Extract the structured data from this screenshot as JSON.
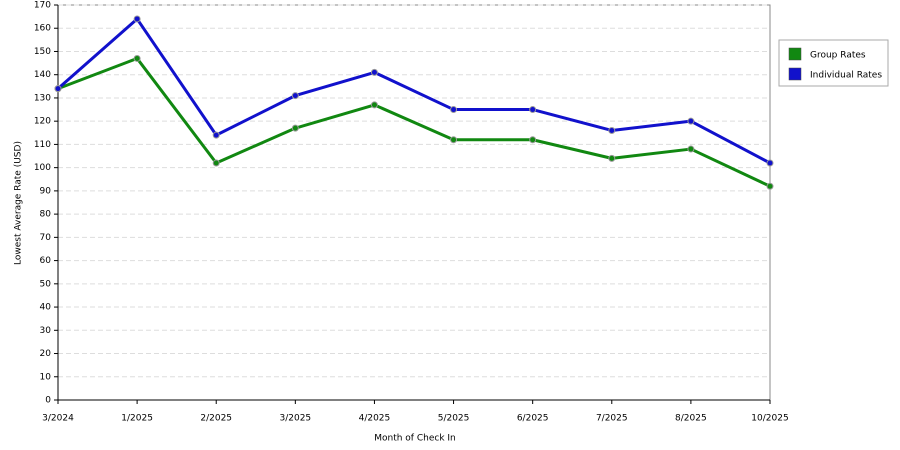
{
  "chart_data": {
    "type": "line",
    "x_label": "Month of Check In",
    "y_label": "Lowest Average Rate (USD)",
    "categories": [
      "3/2024",
      "1/2025",
      "2/2025",
      "3/2025",
      "4/2025",
      "5/2025",
      "6/2025",
      "7/2025",
      "8/2025",
      "10/2025"
    ],
    "series": [
      {
        "name": "Group Rates",
        "color": "#118811",
        "values": [
          134,
          147,
          102,
          117,
          127,
          112,
          112,
          104,
          108,
          92
        ]
      },
      {
        "name": "Individual Rates",
        "color": "#1111cc",
        "values": [
          134,
          164,
          114,
          131,
          141,
          125,
          125,
          116,
          120,
          102
        ]
      }
    ],
    "ylim": [
      0,
      170
    ],
    "yticks": [
      0,
      10,
      20,
      30,
      40,
      50,
      60,
      70,
      80,
      90,
      100,
      110,
      120,
      130,
      140,
      150,
      160,
      170
    ],
    "grid": true,
    "legend": "right"
  }
}
